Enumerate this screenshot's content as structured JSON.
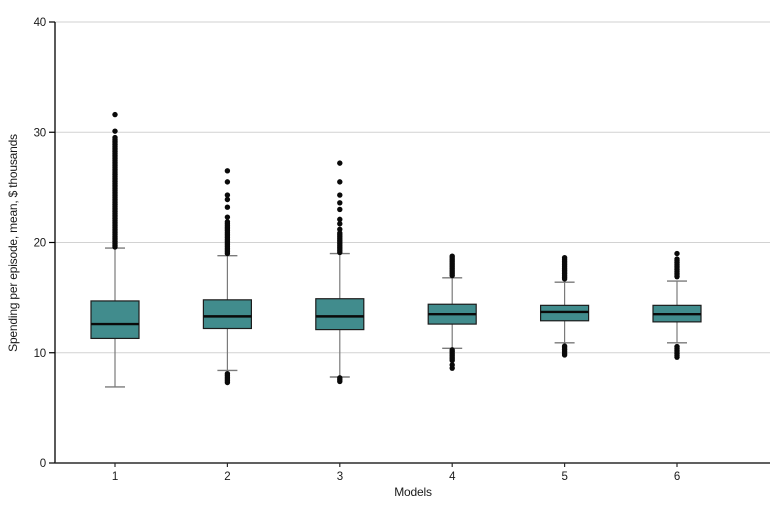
{
  "chart_data": {
    "type": "boxplot",
    "title": "",
    "xlabel": "Models",
    "ylabel": "Spending per episode, mean, $ thousands",
    "ylim": [
      0,
      40
    ],
    "y_ticks": [
      0,
      10,
      20,
      30,
      40
    ],
    "gridlines_at": [
      10,
      20,
      30,
      40
    ],
    "grid_on": true,
    "legend": "none",
    "categories": [
      "1",
      "2",
      "3",
      "4",
      "5",
      "6"
    ],
    "colors": {
      "box_fill": "#418c8d",
      "box_border": "#1c1c1c",
      "median": "#0a0a0a",
      "whisker": "#7a7a7a",
      "outlier": "#0a0a0a",
      "gridline": "#d2d2d2",
      "y_axis": "#000000",
      "x_axis": "#2b2b2b",
      "text": "#1a1a1a",
      "background": "#ffffff"
    },
    "models": [
      {
        "label": "1",
        "whisker_low": 6.9,
        "q1": 11.3,
        "median": 12.6,
        "q3": 14.7,
        "whisker_high": 19.5,
        "outliers_high": [
          30.1,
          31.6
        ],
        "outlier_streaks_high": [
          [
            19.6,
            29.6
          ]
        ],
        "outliers_low": [],
        "outlier_streaks_low": []
      },
      {
        "label": "2",
        "whisker_low": 8.4,
        "q1": 12.2,
        "median": 13.3,
        "q3": 14.8,
        "whisker_high": 18.8,
        "outliers_high": [
          22.3,
          23.2,
          23.9,
          24.3,
          25.5,
          26.5
        ],
        "outlier_streaks_high": [
          [
            19.0,
            21.9
          ]
        ],
        "outliers_low": [],
        "outlier_streaks_low": [
          [
            7.3,
            8.2
          ]
        ]
      },
      {
        "label": "3",
        "whisker_low": 7.8,
        "q1": 12.1,
        "median": 13.3,
        "q3": 14.9,
        "whisker_high": 19.0,
        "outliers_high": [
          21.2,
          21.7,
          22.1,
          23.0,
          23.6,
          24.3,
          25.5,
          27.2
        ],
        "outlier_streaks_high": [
          [
            19.1,
            20.9
          ]
        ],
        "outliers_low": [],
        "outlier_streaks_low": [
          [
            7.4,
            7.8
          ]
        ]
      },
      {
        "label": "4",
        "whisker_low": 10.4,
        "q1": 12.6,
        "median": 13.5,
        "q3": 14.4,
        "whisker_high": 16.8,
        "outliers_high": [],
        "outlier_streaks_high": [
          [
            17.0,
            18.9
          ]
        ],
        "outliers_low": [
          8.6,
          8.9
        ],
        "outlier_streaks_low": [
          [
            9.3,
            10.3
          ]
        ]
      },
      {
        "label": "5",
        "whisker_low": 10.9,
        "q1": 12.9,
        "median": 13.7,
        "q3": 14.3,
        "whisker_high": 16.4,
        "outliers_high": [],
        "outlier_streaks_high": [
          [
            16.7,
            18.7
          ]
        ],
        "outliers_low": [],
        "outlier_streaks_low": [
          [
            9.8,
            10.7
          ]
        ]
      },
      {
        "label": "6",
        "whisker_low": 10.9,
        "q1": 12.8,
        "median": 13.5,
        "q3": 14.3,
        "whisker_high": 16.5,
        "outliers_high": [
          19.0
        ],
        "outlier_streaks_high": [
          [
            16.9,
            18.5
          ]
        ],
        "outliers_low": [],
        "outlier_streaks_low": [
          [
            9.6,
            10.7
          ]
        ]
      }
    ]
  }
}
